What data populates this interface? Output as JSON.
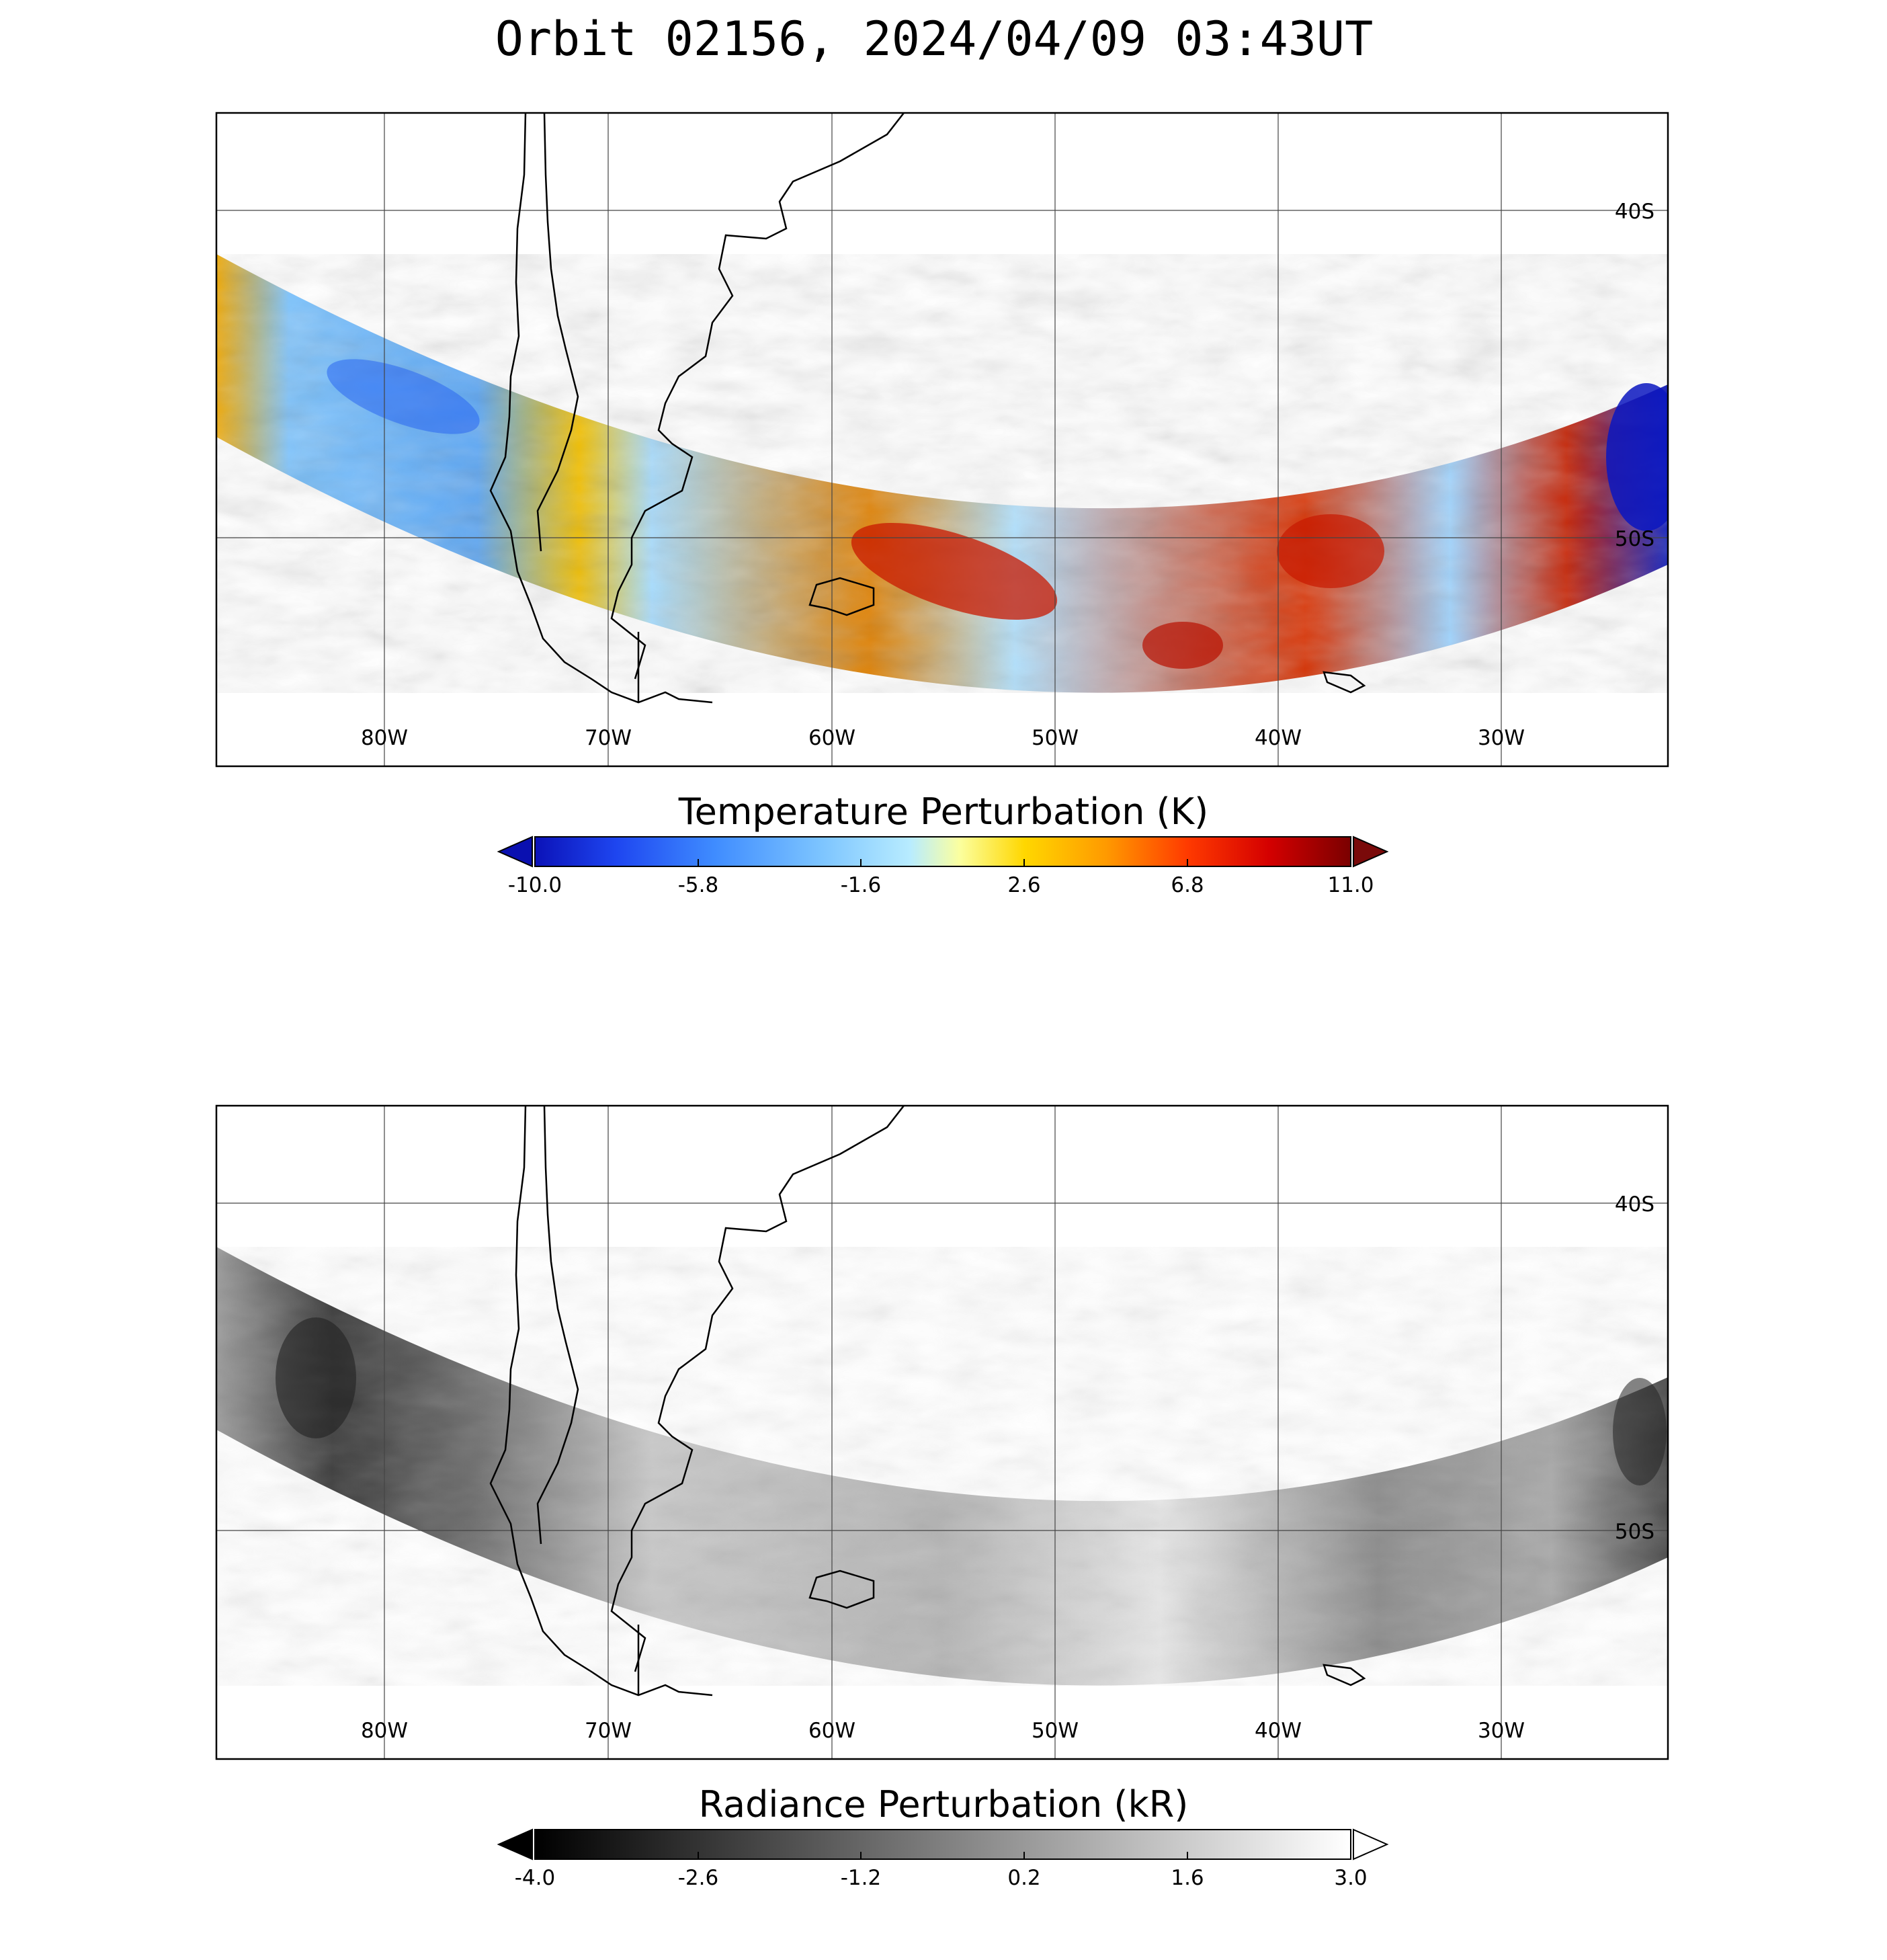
{
  "title": "Orbit 02156, 2024/04/09 03:43UT",
  "panels": [
    {
      "id": "temperature",
      "lon_labels": [
        "80W",
        "70W",
        "60W",
        "50W",
        "40W",
        "30W"
      ],
      "lat_labels": [
        "40S",
        "50S"
      ],
      "colorbar": {
        "title": "Temperature Perturbation (K)",
        "ticks": [
          "-10.0",
          "-5.8",
          "-1.6",
          "2.6",
          "6.8",
          "11.0"
        ],
        "min": -10.0,
        "max": 11.0,
        "colors": [
          "#0b12b8",
          "#1e46f0",
          "#3f8cff",
          "#7cc4ff",
          "#b8ecff",
          "#fbffa0",
          "#ffd700",
          "#ff9a00",
          "#ff3a00",
          "#d40000",
          "#7a0000"
        ],
        "under_color": "#0a10b0",
        "over_color": "#7a0a0a"
      }
    },
    {
      "id": "radiance",
      "lon_labels": [
        "80W",
        "70W",
        "60W",
        "50W",
        "40W",
        "30W"
      ],
      "lat_labels": [
        "40S",
        "50S"
      ],
      "colorbar": {
        "title": "Radiance Perturbation (kR)",
        "ticks": [
          "-4.0",
          "-2.6",
          "-1.2",
          "0.2",
          "1.6",
          "3.0"
        ],
        "min": -4.0,
        "max": 3.0,
        "colors": [
          "#000000",
          "#ffffff"
        ],
        "under_color": "#000000",
        "over_color": "#ffffff"
      }
    }
  ]
}
